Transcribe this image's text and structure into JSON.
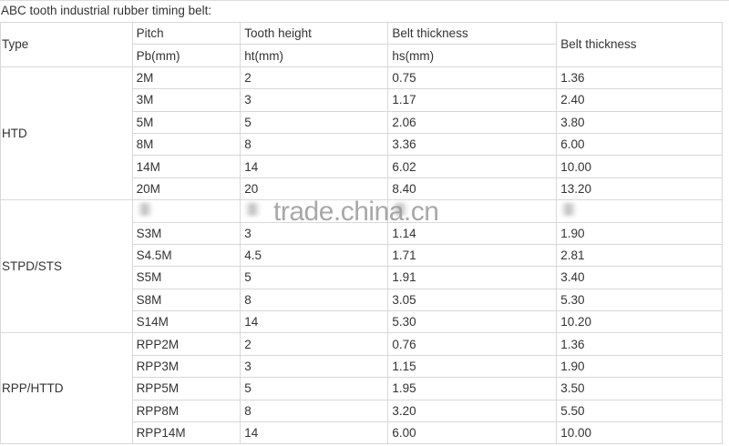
{
  "title": "ABC tooth industrial rubber timing belt:",
  "headers": {
    "type": "Type",
    "pitch": "Pitch",
    "pitch_unit": "Pb(mm)",
    "tooth_height": "Tooth height",
    "tooth_height_unit": "ht(mm)",
    "belt_thickness": "Belt thickness",
    "belt_thickness_unit": "hs(mm)",
    "belt_thickness_2": "Belt thickness"
  },
  "groups": [
    {
      "type": "HTD",
      "rows": [
        [
          "2M",
          "2",
          "0.75",
          "1.36"
        ],
        [
          "3M",
          "3",
          "1.17",
          "2.40"
        ],
        [
          "5M",
          "5",
          "2.06",
          "3.80"
        ],
        [
          "8M",
          "8",
          "3.36",
          "6.00"
        ],
        [
          "14M",
          "14",
          "6.02",
          "10.00"
        ],
        [
          "20M",
          "20",
          "8.40",
          "13.20"
        ]
      ]
    },
    {
      "type": "STPD/STS",
      "rows": [
        [
          "S3M",
          "3",
          "1.14",
          "1.90"
        ],
        [
          "S4.5M",
          "4.5",
          "1.71",
          "2.81"
        ],
        [
          "S5M",
          "5",
          "1.91",
          "3.40"
        ],
        [
          "S8M",
          "8",
          "3.05",
          "5.30"
        ],
        [
          "S14M",
          "14",
          "5.30",
          "10.20"
        ]
      ]
    },
    {
      "type": "RPP/HTTD",
      "rows": [
        [
          "RPP2M",
          "2",
          "0.76",
          "1.36"
        ],
        [
          "RPP3M",
          "3",
          "1.15",
          "1.90"
        ],
        [
          "RPP5M",
          "5",
          "1.95",
          "3.50"
        ],
        [
          "RPP8M",
          "8",
          "3.20",
          "5.50"
        ],
        [
          "RPP14M",
          "14",
          "6.00",
          "10.00"
        ]
      ]
    }
  ],
  "watermark": "trade.china.cn"
}
